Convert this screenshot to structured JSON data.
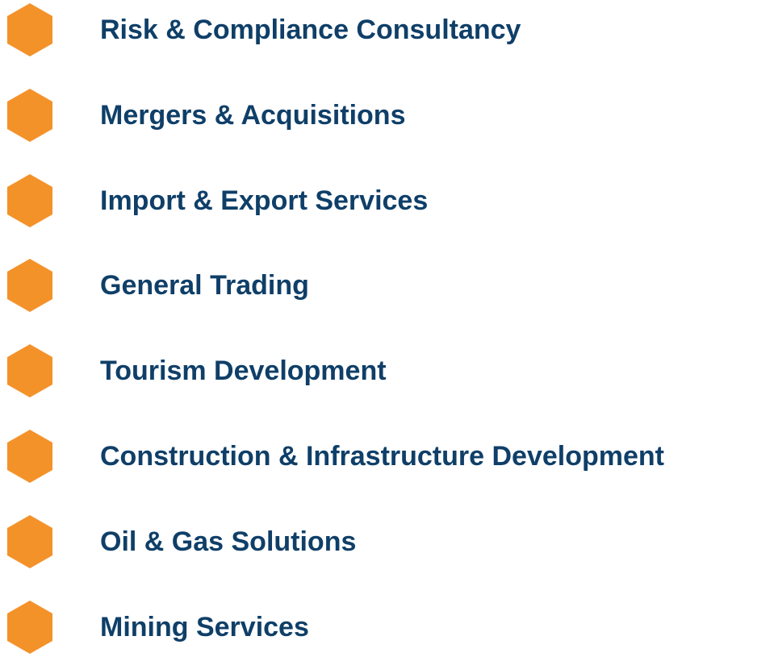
{
  "items": [
    "Risk & Compliance Consultancy",
    "Mergers & Acquisitions",
    "Import & Export Services",
    "General Trading",
    "Tourism Development",
    "Construction & Infrastructure Development",
    "Oil & Gas Solutions",
    "Mining Services"
  ]
}
